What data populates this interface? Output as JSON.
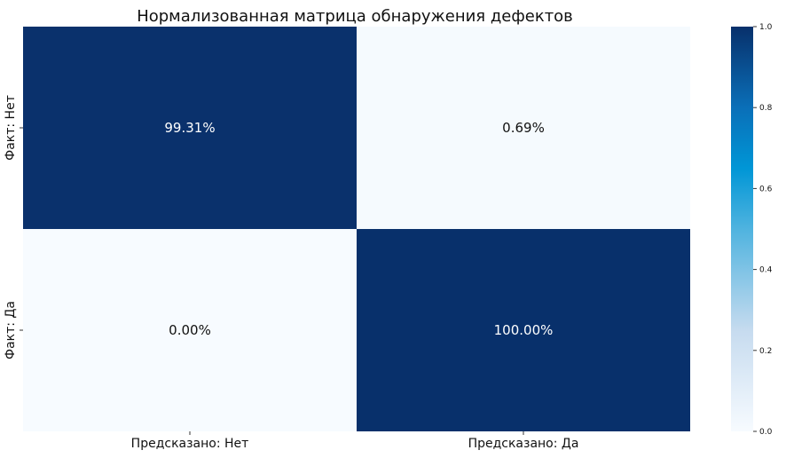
{
  "chart_data": {
    "type": "heatmap",
    "title": "Нормализованная матрица обнаружения дефектов",
    "x_categories": [
      "Предсказано: Нет",
      "Предсказано: Да"
    ],
    "y_categories": [
      "Факт: Нет",
      "Факт: Да"
    ],
    "values": [
      [
        0.9931,
        0.0069
      ],
      [
        0.0,
        1.0
      ]
    ],
    "cell_labels": [
      [
        "99.31%",
        "0.69%"
      ],
      [
        "0.00%",
        "100.00%"
      ]
    ],
    "colorscale": "Blues",
    "colorbar": {
      "range": [
        0.0,
        1.0
      ],
      "ticks": [
        "0.0",
        "0.2",
        "0.4",
        "0.6",
        "0.8",
        "1.0"
      ]
    },
    "colors": {
      "low": "#f7fbff",
      "high": "#08306b"
    }
  }
}
